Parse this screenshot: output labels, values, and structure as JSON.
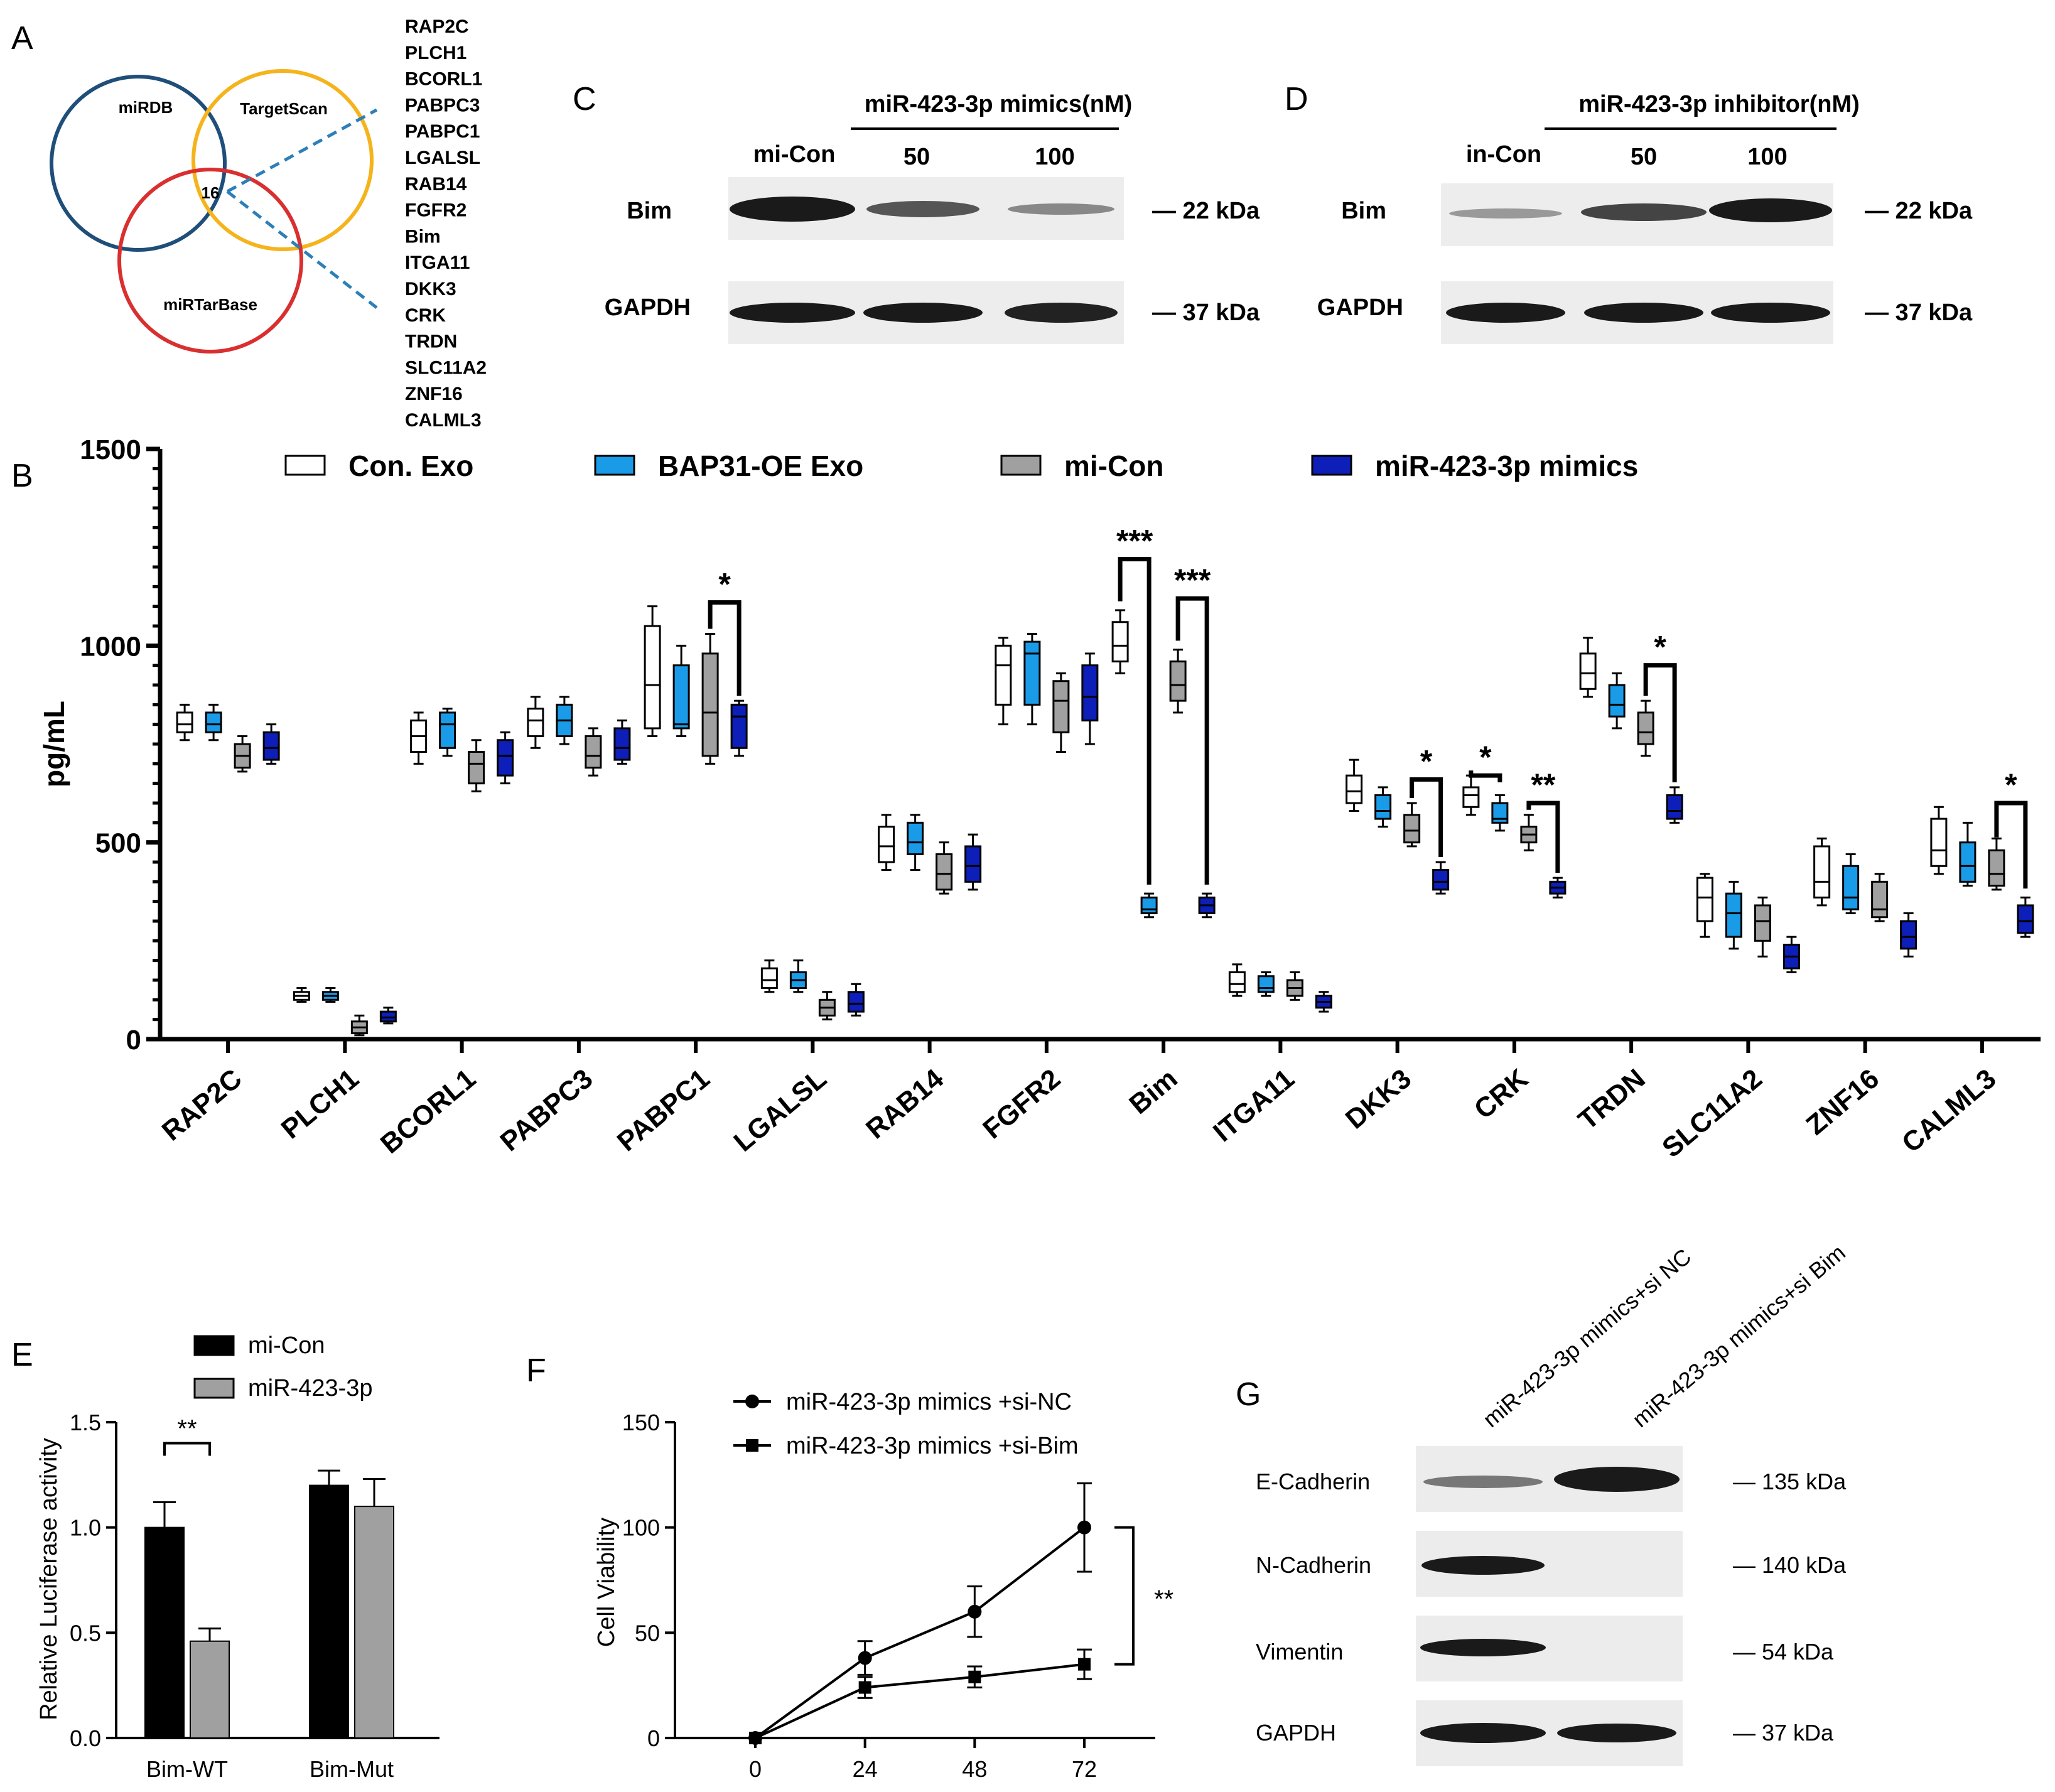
{
  "panels": {
    "A": "A",
    "B": "B",
    "C": "C",
    "D": "D",
    "E": "E",
    "F": "F",
    "G": "G"
  },
  "venn": {
    "sets": [
      "miRDB",
      "TargetScan",
      "miRTarBase"
    ],
    "intersection": "16",
    "genes": [
      "RAP2C",
      "PLCH1",
      "BCORL1",
      "PABPC3",
      "PABPC1",
      "LGALSL",
      "RAB14",
      "FGFR2",
      "Bim",
      "ITGA11",
      "DKK3",
      "CRK",
      "TRDN",
      "SLC11A2",
      "ZNF16",
      "CALML3"
    ]
  },
  "blot_c": {
    "header": "miR-423-3p mimics(nM)",
    "lanes": [
      "mi-Con",
      "50",
      "100"
    ],
    "rows": [
      "Bim",
      "GAPDH"
    ],
    "sizes": [
      "— 22 kDa",
      "— 37 kDa"
    ]
  },
  "blot_d": {
    "header": "miR-423-3p inhibitor(nM)",
    "lanes": [
      "in-Con",
      "50",
      "100"
    ],
    "rows": [
      "Bim",
      "GAPDH"
    ],
    "sizes": [
      "— 22 kDa",
      "— 37 kDa"
    ]
  },
  "blot_g": {
    "lanes": [
      "miR-423-3p mimics+si NC",
      "miR-423-3p mimics+si Bim"
    ],
    "rows": [
      "E-Cadherin",
      "N-Cadherin",
      "Vimentin",
      "GAPDH"
    ],
    "sizes": [
      "— 135 kDa",
      "— 140 kDa",
      "— 54 kDa",
      "— 37 kDa"
    ]
  },
  "colors": {
    "con_exo": "#ffffff",
    "bap31": "#1a9be8",
    "mi_con": "#a0a0a0",
    "mimics": "#0d1fb8",
    "venn_mirdb": "#1f4e79",
    "venn_ts": "#f5b31c",
    "venn_mtb": "#d92f2f",
    "link": "#2c7fb8"
  },
  "chart_data": [
    {
      "type": "box",
      "panel": "B",
      "ylabel": "pg/mL",
      "ylim": [
        0,
        1500
      ],
      "yticks": [
        0,
        500,
        1000,
        1500
      ],
      "categories": [
        "RAP2C",
        "PLCH1",
        "BCORL1",
        "PABPC3",
        "PABPC1",
        "LGALSL",
        "RAB14",
        "FGFR2",
        "Bim",
        "ITGA11",
        "DKK3",
        "CRK",
        "TRDN",
        "SLC11A2",
        "ZNF16",
        "CALML3"
      ],
      "legend": [
        "Con. Exo",
        "BAP31-OE Exo",
        "mi-Con",
        "miR-423-3p mimics"
      ],
      "series": [
        {
          "name": "Con. Exo",
          "boxes": [
            [
              760,
              780,
              800,
              830,
              850
            ],
            [
              95,
              100,
              110,
              120,
              130
            ],
            [
              700,
              730,
              770,
              810,
              830
            ],
            [
              740,
              770,
              810,
              840,
              870
            ],
            [
              770,
              790,
              900,
              1050,
              1100
            ],
            [
              120,
              130,
              150,
              180,
              200
            ],
            [
              430,
              450,
              490,
              540,
              570
            ],
            [
              800,
              850,
              950,
              1000,
              1020
            ],
            [
              930,
              960,
              1000,
              1060,
              1090
            ],
            [
              110,
              120,
              140,
              170,
              190
            ],
            [
              580,
              600,
              630,
              670,
              710
            ],
            [
              570,
              590,
              620,
              640,
              670
            ],
            [
              870,
              890,
              930,
              980,
              1020
            ],
            [
              260,
              300,
              360,
              410,
              420
            ],
            [
              340,
              360,
              400,
              490,
              510
            ],
            [
              420,
              440,
              480,
              560,
              590
            ]
          ]
        },
        {
          "name": "BAP31-OE Exo",
          "boxes": [
            [
              760,
              780,
              800,
              830,
              850
            ],
            [
              95,
              100,
              110,
              120,
              130
            ],
            [
              720,
              740,
              800,
              830,
              840
            ],
            [
              750,
              770,
              810,
              850,
              870
            ],
            [
              770,
              790,
              800,
              950,
              1000
            ],
            [
              120,
              130,
              150,
              170,
              200
            ],
            [
              430,
              470,
              500,
              550,
              570
            ],
            [
              800,
              850,
              980,
              1010,
              1030
            ],
            [
              310,
              320,
              330,
              360,
              370
            ],
            [
              110,
              120,
              130,
              160,
              170
            ],
            [
              540,
              560,
              580,
              620,
              640
            ],
            [
              530,
              550,
              560,
              600,
              620
            ],
            [
              790,
              820,
              850,
              900,
              930
            ],
            [
              230,
              260,
              320,
              370,
              400
            ],
            [
              320,
              330,
              360,
              440,
              470
            ],
            [
              390,
              400,
              440,
              500,
              550
            ]
          ]
        },
        {
          "name": "mi-Con",
          "boxes": [
            [
              680,
              690,
              720,
              750,
              770
            ],
            [
              10,
              15,
              30,
              45,
              60
            ],
            [
              630,
              650,
              700,
              730,
              760
            ],
            [
              670,
              690,
              720,
              770,
              790
            ],
            [
              700,
              720,
              830,
              980,
              1030
            ],
            [
              50,
              60,
              80,
              100,
              120
            ],
            [
              370,
              380,
              420,
              470,
              500
            ],
            [
              730,
              780,
              860,
              910,
              930
            ],
            [
              830,
              860,
              900,
              960,
              990
            ],
            [
              100,
              110,
              130,
              150,
              170
            ],
            [
              490,
              500,
              530,
              570,
              600
            ],
            [
              480,
              500,
              520,
              540,
              570
            ],
            [
              720,
              750,
              780,
              830,
              860
            ],
            [
              210,
              250,
              300,
              340,
              360
            ],
            [
              300,
              310,
              330,
              400,
              420
            ],
            [
              380,
              390,
              420,
              480,
              510
            ]
          ]
        },
        {
          "name": "miR-423-3p mimics",
          "boxes": [
            [
              700,
              710,
              740,
              780,
              800
            ],
            [
              40,
              45,
              55,
              70,
              80
            ],
            [
              650,
              670,
              720,
              760,
              780
            ],
            [
              700,
              710,
              740,
              790,
              810
            ],
            [
              720,
              740,
              820,
              850,
              860
            ],
            [
              60,
              70,
              90,
              120,
              140
            ],
            [
              380,
              400,
              440,
              490,
              520
            ],
            [
              750,
              810,
              870,
              950,
              980
            ],
            [
              310,
              320,
              340,
              360,
              370
            ],
            [
              70,
              80,
              95,
              110,
              120
            ],
            [
              370,
              380,
              400,
              430,
              450
            ],
            [
              360,
              370,
              385,
              400,
              410
            ],
            [
              550,
              560,
              580,
              620,
              640
            ],
            [
              170,
              180,
              210,
              240,
              260
            ],
            [
              210,
              230,
              260,
              300,
              320
            ],
            [
              260,
              270,
              300,
              340,
              360
            ]
          ]
        }
      ],
      "annotations": [
        {
          "category": "PABPC1",
          "label": "*"
        },
        {
          "category": "Bim",
          "label": "***"
        },
        {
          "category": "Bim",
          "label": "***"
        },
        {
          "category": "DKK3",
          "label": "*"
        },
        {
          "category": "CRK",
          "label": "*"
        },
        {
          "category": "CRK",
          "label": "**"
        },
        {
          "category": "TRDN",
          "label": "*"
        },
        {
          "category": "CALML3",
          "label": "*"
        }
      ]
    },
    {
      "type": "bar",
      "panel": "E",
      "ylabel": "Relative Luciferase activity",
      "ylim": [
        0,
        1.5
      ],
      "yticks": [
        "0.0",
        "0.5",
        "1.0",
        "1.5"
      ],
      "categories": [
        "Bim-WT",
        "Bim-Mut"
      ],
      "series": [
        {
          "name": "mi-Con",
          "values": [
            1.0,
            1.2
          ],
          "errors": [
            0.12,
            0.07
          ]
        },
        {
          "name": "miR-423-3p",
          "values": [
            0.46,
            1.1
          ],
          "errors": [
            0.06,
            0.13
          ]
        }
      ],
      "annotation": "**"
    },
    {
      "type": "line",
      "panel": "F",
      "ylabel": "Cell Viability",
      "ylim": [
        0,
        150
      ],
      "yticks": [
        0,
        50,
        100,
        150
      ],
      "x": [
        0,
        24,
        48,
        72
      ],
      "series": [
        {
          "name": "miR-423-3p mimics +si-NC",
          "values": [
            0,
            38,
            60,
            100
          ],
          "errors": [
            0,
            8,
            12,
            21
          ]
        },
        {
          "name": "miR-423-3p mimics +si-Bim",
          "values": [
            0,
            24,
            29,
            35
          ],
          "errors": [
            0,
            5,
            5,
            7
          ]
        }
      ],
      "annotation": "**"
    }
  ]
}
